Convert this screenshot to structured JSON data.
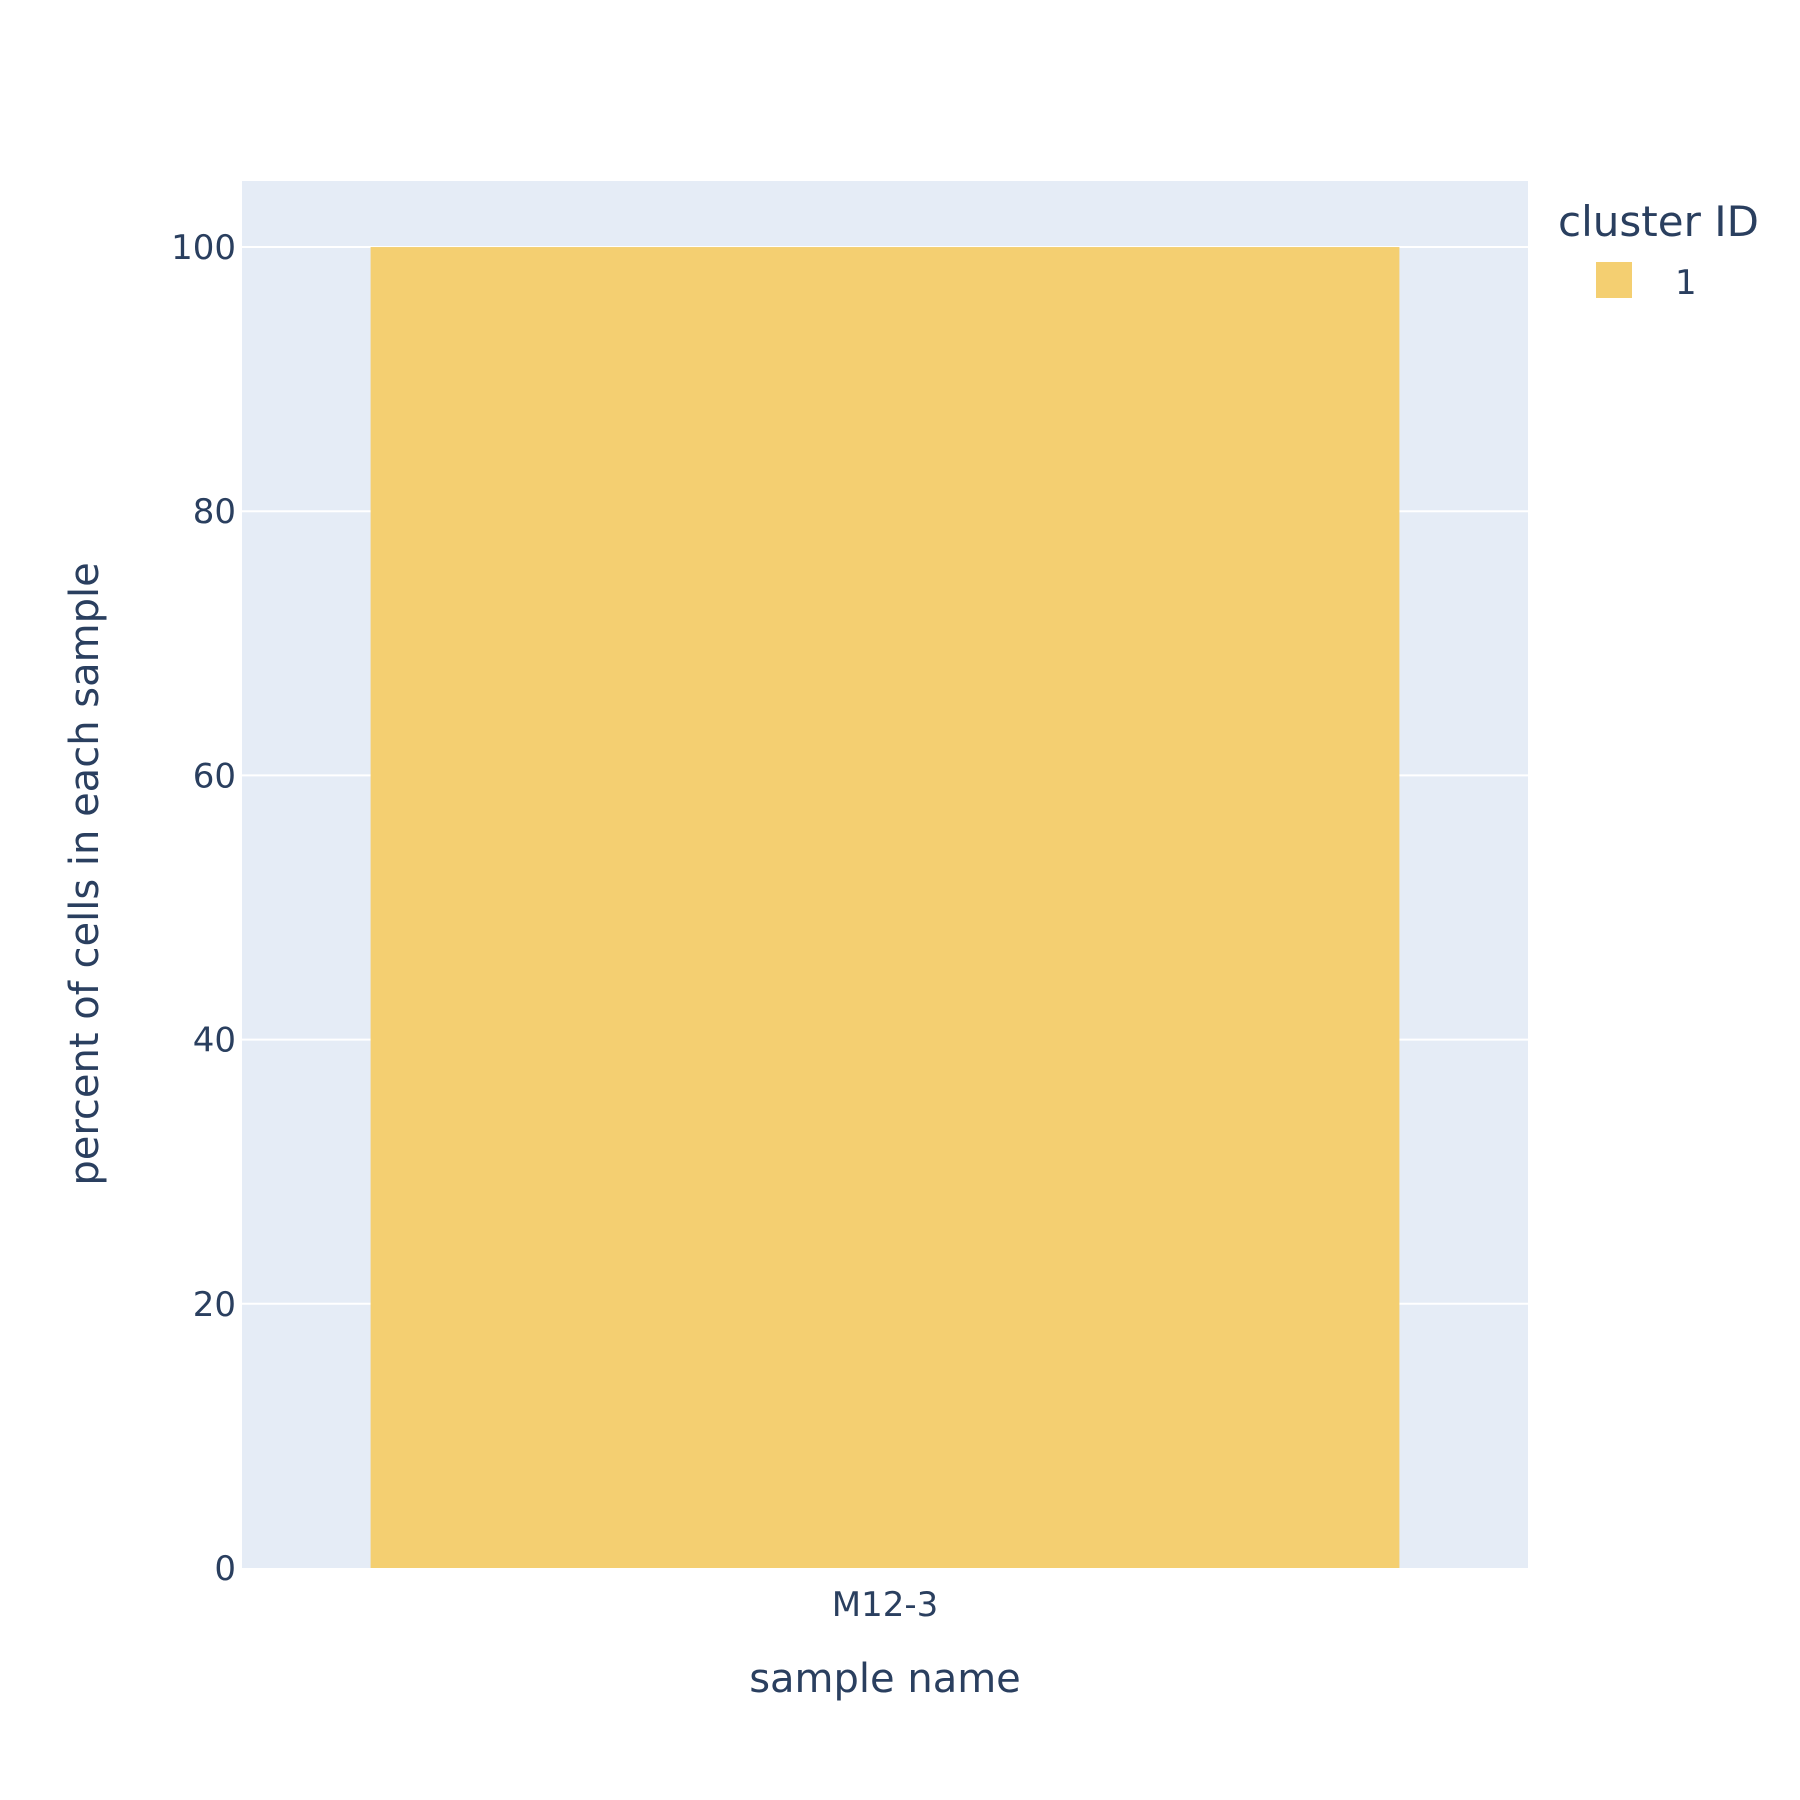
{
  "chart_data": {
    "type": "bar",
    "categories": [
      "M12-3"
    ],
    "series": [
      {
        "name": "1",
        "values": [
          100
        ],
        "color": "#F4CF71"
      }
    ],
    "xlabel": "sample name",
    "ylabel": "percent of cells in each sample",
    "ylim": [
      0,
      105
    ],
    "yticks": [
      0,
      20,
      40,
      60,
      80,
      100
    ],
    "grid": true,
    "legend": {
      "title": "cluster ID",
      "position": "top-right"
    },
    "colors": {
      "plot_background": "#E5ECF6",
      "gridline": "#ffffff",
      "text": "#2a3f5f"
    }
  }
}
